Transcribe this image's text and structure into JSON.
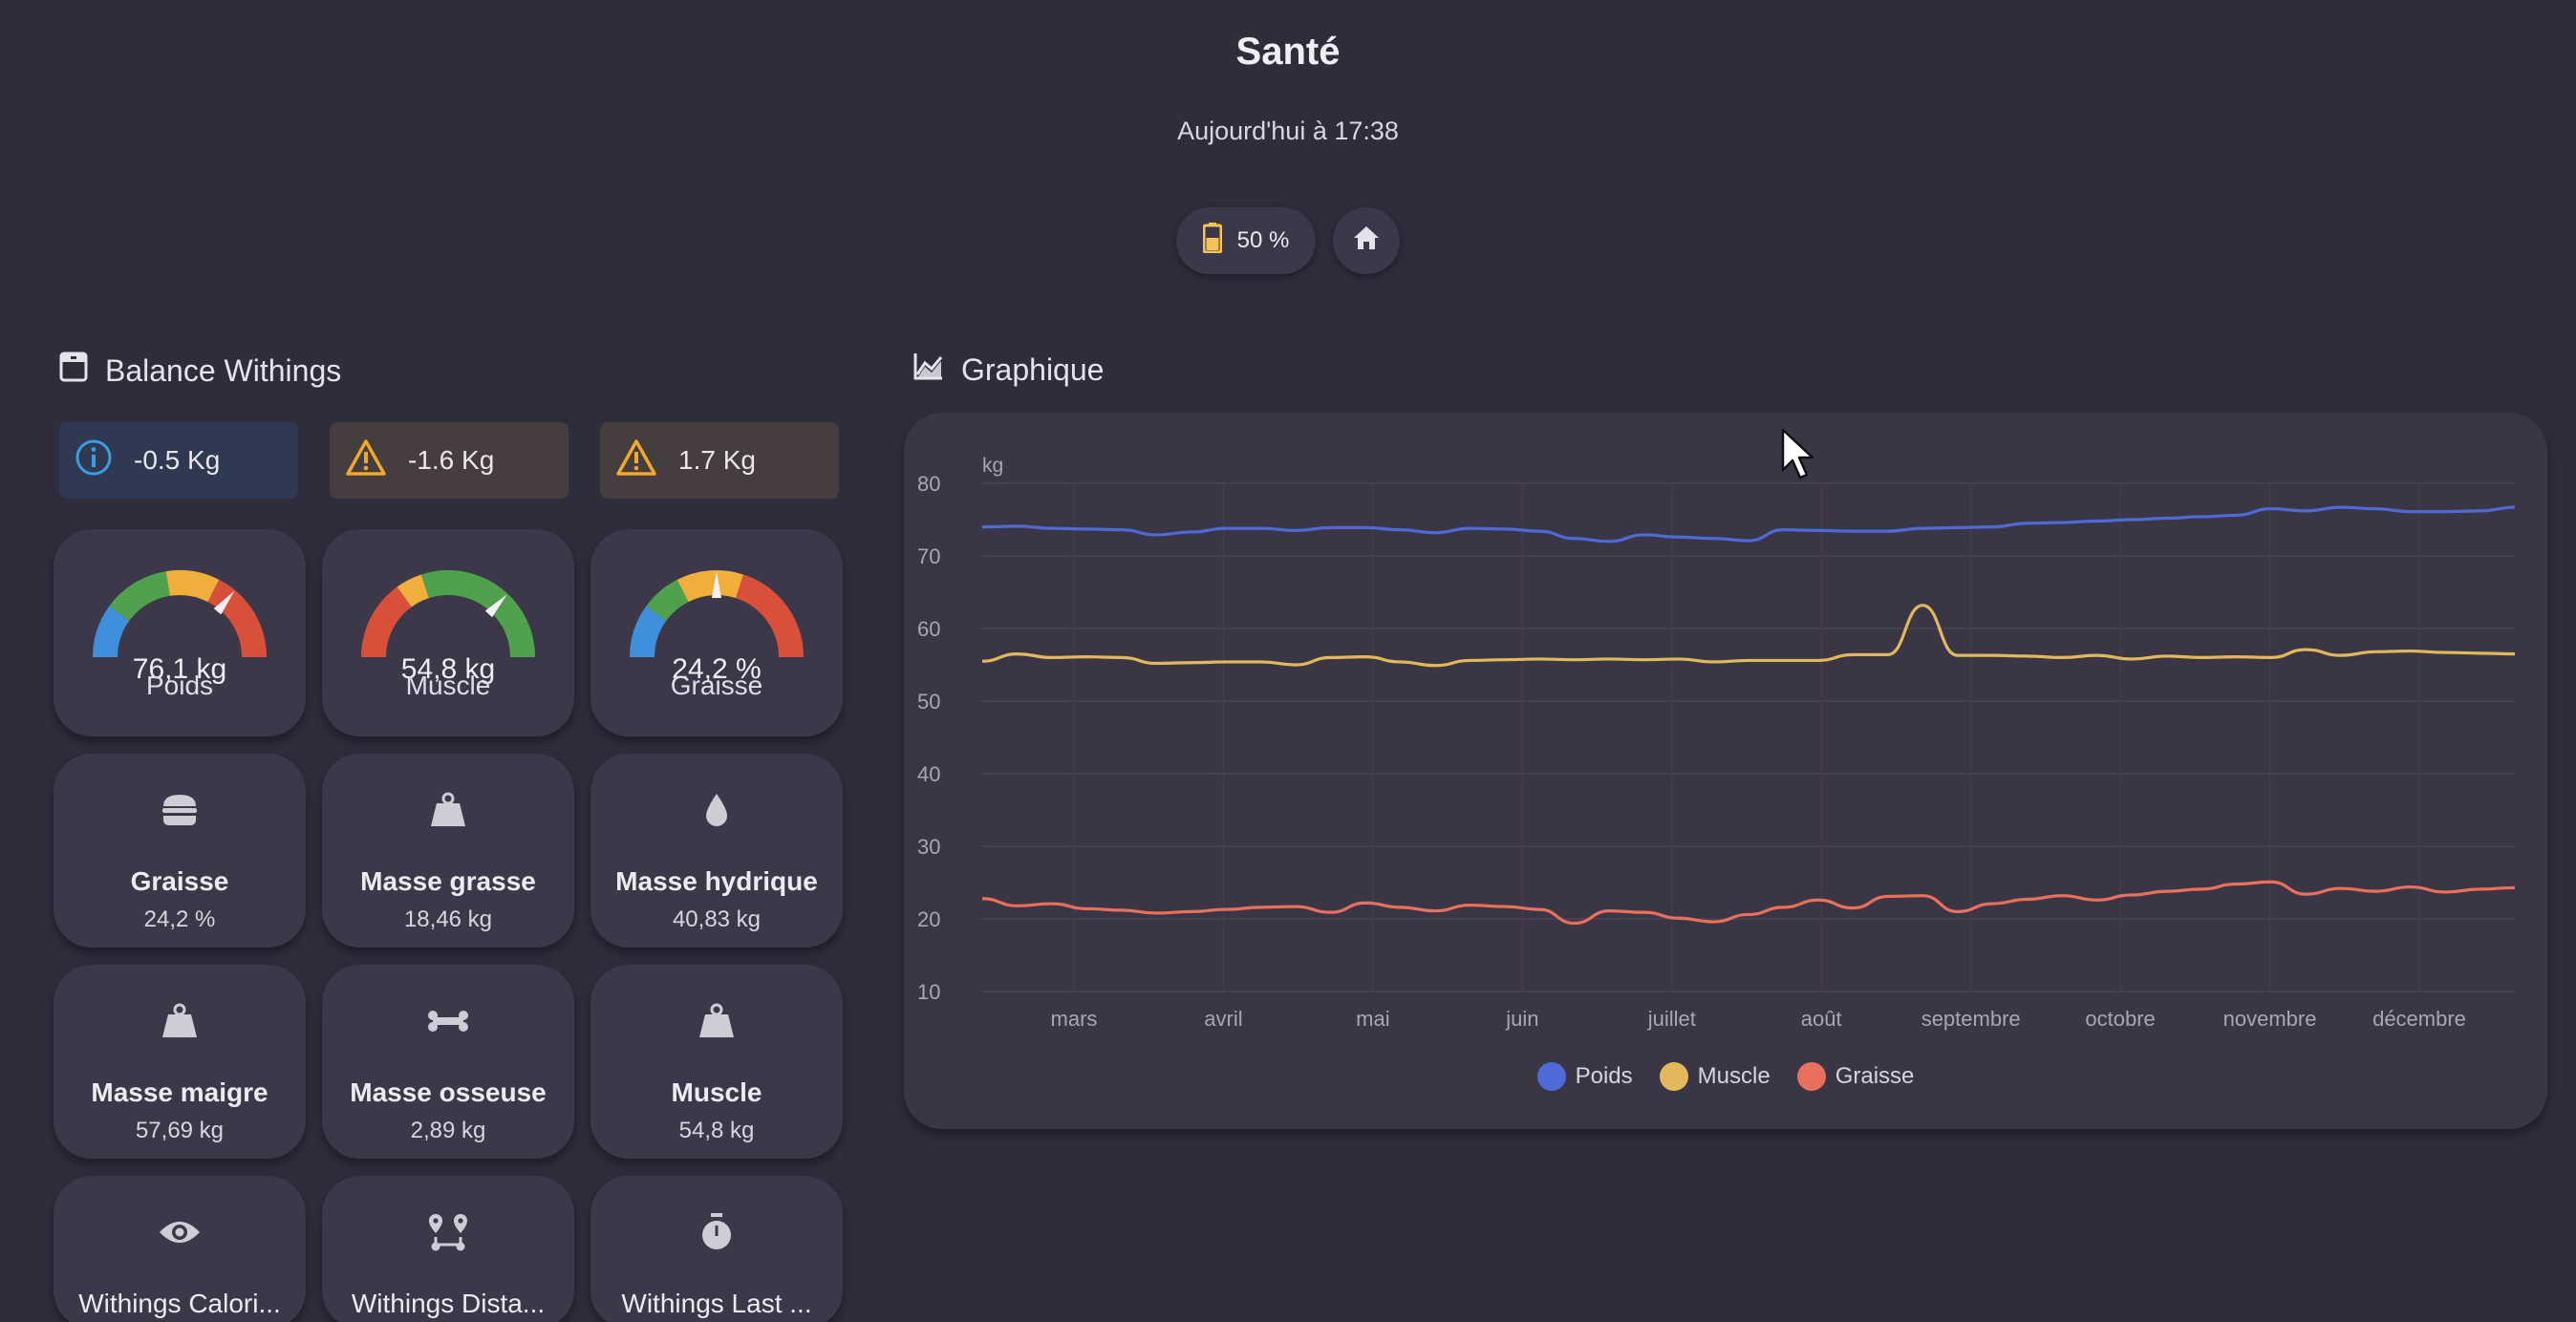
{
  "header": {
    "title": "Santé",
    "subtitle": "Aujourd'hui à 17:38",
    "battery_label": "50 %",
    "battery_icon": "battery-icon",
    "home_icon": "home-icon"
  },
  "left_section": {
    "title": "Balance Withings",
    "icon": "scale-icon",
    "alerts": [
      {
        "type": "info",
        "icon": "info-icon",
        "text": "-0.5 Kg",
        "color": "#3b9de0"
      },
      {
        "type": "warning",
        "icon": "warning-icon",
        "text": "-1.6 Kg",
        "color": "#f0a830"
      },
      {
        "type": "warning",
        "icon": "warning-icon",
        "text": "1.7 Kg",
        "color": "#f0a830"
      }
    ],
    "gauges": [
      {
        "value": "76,1 kg",
        "label": "Poids",
        "level": 0.72
      },
      {
        "value": "54,8 kg",
        "label": "Muscle",
        "level": 0.74
      },
      {
        "value": "24,2 %",
        "label": "Graisse",
        "level": 0.5
      }
    ],
    "sensors": [
      {
        "icon": "burger-icon",
        "name": "Graisse",
        "value": "24,2 %"
      },
      {
        "icon": "weight-icon",
        "name": "Masse grasse",
        "value": "18,46 kg"
      },
      {
        "icon": "water-drop-icon",
        "name": "Masse hydrique",
        "value": "40,83 kg"
      },
      {
        "icon": "weight-icon",
        "name": "Masse maigre",
        "value": "57,69 kg"
      },
      {
        "icon": "bone-icon",
        "name": "Masse osseuse",
        "value": "2,89 kg"
      },
      {
        "icon": "weight-icon",
        "name": "Muscle",
        "value": "54,8 kg"
      }
    ],
    "bottom_tiles": [
      {
        "icon": "eye-icon",
        "name": "Withings Calori..."
      },
      {
        "icon": "map-route-icon",
        "name": "Withings Dista..."
      },
      {
        "icon": "timer-icon",
        "name": "Withings Last ..."
      }
    ]
  },
  "right_section": {
    "title": "Graphique",
    "icon": "chart-line-icon"
  },
  "chart_data": {
    "type": "line",
    "ylabel": "kg",
    "ylim": [
      10,
      80
    ],
    "yticks": [
      "80",
      "70",
      "60",
      "50",
      "40",
      "30",
      "20",
      "10"
    ],
    "xticks": [
      "mars",
      "avril",
      "mai",
      "juin",
      "juillet",
      "août",
      "septembre",
      "octobre",
      "novembre",
      "décembre"
    ],
    "grid": true,
    "legend_position": "bottom",
    "series": [
      {
        "name": "Poids",
        "color": "#4e6ad6",
        "values": [
          74,
          74.1,
          73.8,
          73.7,
          73.6,
          72.9,
          73.3,
          73.8,
          73.8,
          73.5,
          73.9,
          73.9,
          73.6,
          73.2,
          73.8,
          73.7,
          73.4,
          72.4,
          72,
          72.9,
          72.6,
          72.4,
          72.1,
          73.6,
          73.5,
          73.4,
          73.4,
          73.8,
          73.9,
          74,
          74.5,
          74.6,
          74.8,
          75,
          75.2,
          75.4,
          75.6,
          76.5,
          76.2,
          76.7,
          76.5,
          76.1,
          76.1,
          76.2,
          76.7
        ]
      },
      {
        "name": "Muscle",
        "color": "#e2b95a",
        "values": [
          55.5,
          56.5,
          56,
          56.1,
          56,
          55.2,
          55.3,
          55.4,
          55.4,
          55,
          56,
          56.1,
          55.4,
          54.9,
          55.6,
          55.7,
          55.8,
          55.7,
          55.8,
          55.7,
          55.8,
          55.4,
          55.6,
          55.6,
          55.6,
          56.4,
          56.4,
          63.2,
          56.3,
          56.3,
          56.2,
          56,
          56.3,
          55.8,
          56.2,
          56,
          56.1,
          56,
          57.1,
          56.3,
          56.8,
          56.9,
          56.7,
          56.6,
          56.5
        ]
      },
      {
        "name": "Graisse",
        "color": "#e8705c",
        "values": [
          22.8,
          21.8,
          22.1,
          21.4,
          21.2,
          20.8,
          21,
          21.3,
          21.6,
          21.7,
          20.9,
          22.2,
          21.6,
          21.1,
          21.9,
          21.7,
          21.3,
          19.4,
          21.1,
          20.9,
          20.1,
          19.6,
          20.6,
          21.6,
          22.6,
          21.5,
          23.1,
          23.2,
          21,
          22.1,
          22.7,
          23.2,
          22.6,
          23.3,
          23.8,
          24.1,
          24.8,
          25.1,
          23.4,
          24.2,
          23.8,
          24.4,
          23.7,
          24.1,
          24.3
        ]
      }
    ]
  },
  "colors": {
    "gauge_blue": "#3f8fdc",
    "gauge_green": "#4fa14e",
    "gauge_yellow": "#f0ae3c",
    "gauge_red": "#d9503a"
  }
}
